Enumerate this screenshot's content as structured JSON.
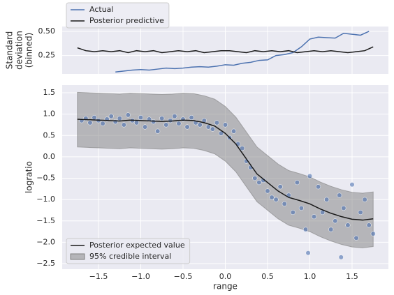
{
  "chart_data": [
    {
      "type": "line",
      "ylabel": [
        "Standard",
        "deviation",
        "(binned)"
      ],
      "xlim": [
        -1.93,
        1.93
      ],
      "xticks": [
        -1.5,
        -1.0,
        -0.5,
        0,
        0.5,
        1.0,
        1.5
      ],
      "xtick_labels": false,
      "ylim": [
        0.06,
        0.55
      ],
      "yticks": [
        {
          "value": 0.5,
          "label": "0.50"
        },
        0.25
      ],
      "grid": true,
      "legend": "upper left outside",
      "series": [
        {
          "name": "Actual",
          "color": "#4c72b0",
          "x": [
            -1.3,
            -1.2,
            -1.1,
            -1.0,
            -0.9,
            -0.8,
            -0.7,
            -0.6,
            -0.5,
            -0.4,
            -0.3,
            -0.2,
            -0.1,
            0,
            0.1,
            0.2,
            0.3,
            0.4,
            0.5,
            0.6,
            0.7,
            0.8,
            0.9,
            1.0,
            1.1,
            1.2,
            1.3,
            1.4,
            1.5,
            1.6,
            1.7
          ],
          "values": [
            0.08,
            0.09,
            0.1,
            0.105,
            0.1,
            0.11,
            0.12,
            0.115,
            0.12,
            0.13,
            0.135,
            0.13,
            0.14,
            0.155,
            0.15,
            0.17,
            0.18,
            0.2,
            0.205,
            0.25,
            0.26,
            0.28,
            0.34,
            0.42,
            0.44,
            0.435,
            0.43,
            0.48,
            0.47,
            0.46,
            0.5
          ]
        },
        {
          "name": "Posterior predictive",
          "color": "#1a1a1a",
          "x": [
            -1.75,
            -1.65,
            -1.55,
            -1.45,
            -1.35,
            -1.25,
            -1.15,
            -1.05,
            -0.95,
            -0.85,
            -0.75,
            -0.65,
            -0.55,
            -0.45,
            -0.35,
            -0.25,
            -0.15,
            -0.05,
            0.05,
            0.15,
            0.25,
            0.35,
            0.45,
            0.55,
            0.65,
            0.75,
            0.85,
            0.95,
            1.05,
            1.15,
            1.25,
            1.35,
            1.45,
            1.55,
            1.65,
            1.75
          ],
          "values": [
            0.33,
            0.3,
            0.29,
            0.3,
            0.29,
            0.3,
            0.28,
            0.3,
            0.29,
            0.3,
            0.28,
            0.29,
            0.3,
            0.29,
            0.3,
            0.28,
            0.29,
            0.3,
            0.3,
            0.29,
            0.28,
            0.3,
            0.29,
            0.3,
            0.29,
            0.3,
            0.28,
            0.29,
            0.3,
            0.29,
            0.3,
            0.29,
            0.28,
            0.29,
            0.3,
            0.34
          ]
        }
      ]
    },
    {
      "type": "line",
      "xlabel": "range",
      "ylabel": "logratio",
      "xlim": [
        -1.93,
        1.93
      ],
      "xticks": [
        {
          "value": -1.5,
          "label": "−1.5"
        },
        {
          "value": -1.0,
          "label": "−1.0"
        },
        {
          "value": -0.5,
          "label": "−0.5"
        },
        {
          "value": 0,
          "label": "0.0"
        },
        0.5,
        {
          "value": 1.0,
          "label": "1.0"
        },
        1.5
      ],
      "ylim": [
        -2.63,
        1.68
      ],
      "yticks": [
        1.5,
        {
          "value": 1.0,
          "label": "1.0"
        },
        0.5,
        {
          "value": 0,
          "label": "0.0"
        },
        {
          "value": -0.5,
          "label": "−0.5"
        },
        {
          "value": -1.0,
          "label": "−1.0"
        },
        {
          "value": -1.5,
          "label": "−1.5"
        },
        {
          "value": -2.0,
          "label": "−2.0"
        },
        {
          "value": -2.5,
          "label": "−2.5"
        }
      ],
      "grid": true,
      "legend": "lower left",
      "scatter": {
        "color": "#4c72b0",
        "x": [
          -1.7,
          -1.65,
          -1.6,
          -1.55,
          -1.5,
          -1.45,
          -1.4,
          -1.35,
          -1.3,
          -1.25,
          -1.2,
          -1.15,
          -1.1,
          -1.05,
          -1.0,
          -0.95,
          -0.9,
          -0.85,
          -0.8,
          -0.75,
          -0.7,
          -0.65,
          -0.6,
          -0.55,
          -0.5,
          -0.45,
          -0.4,
          -0.35,
          -0.3,
          -0.25,
          -0.2,
          -0.15,
          -0.1,
          -0.05,
          0,
          0.05,
          0.1,
          0.15,
          0.2,
          0.25,
          0.3,
          0.35,
          0.4,
          0.45,
          0.5,
          0.55,
          0.6,
          0.65,
          0.7,
          0.75,
          0.8,
          0.85,
          0.9,
          0.95,
          1.0,
          1.05,
          1.1,
          1.15,
          1.2,
          1.25,
          1.3,
          1.35,
          1.4,
          1.45,
          1.5,
          1.55,
          1.6,
          1.65,
          1.7,
          1.75,
          0.98,
          1.37
        ],
        "values": [
          0.85,
          0.9,
          0.8,
          0.92,
          0.85,
          0.78,
          0.88,
          0.95,
          0.82,
          0.9,
          0.75,
          0.98,
          0.85,
          0.8,
          0.92,
          0.7,
          0.88,
          0.82,
          0.6,
          0.9,
          0.75,
          0.85,
          0.95,
          0.78,
          0.88,
          0.7,
          0.92,
          0.8,
          0.75,
          0.85,
          0.7,
          0.65,
          0.8,
          0.55,
          0.75,
          0.45,
          0.6,
          0.3,
          0.2,
          -0.1,
          -0.25,
          -0.5,
          -0.6,
          -0.55,
          -0.8,
          -0.95,
          -1.0,
          -0.7,
          -1.1,
          -0.9,
          -1.3,
          -0.6,
          -1.2,
          -1.7,
          -0.45,
          -1.4,
          -0.7,
          -1.3,
          -1.0,
          -1.7,
          -1.5,
          -0.9,
          -1.2,
          -1.6,
          -0.65,
          -1.9,
          -1.3,
          -1.0,
          -1.6,
          -1.8,
          -2.25,
          -2.35
        ]
      },
      "series": [
        {
          "name": "Posterior expected value",
          "color": "#1a1a1a",
          "x": [
            -1.75,
            -1.625,
            -1.5,
            -1.375,
            -1.25,
            -1.125,
            -1.0,
            -0.875,
            -0.75,
            -0.625,
            -0.5,
            -0.375,
            -0.25,
            -0.125,
            0,
            0.125,
            0.25,
            0.375,
            0.5,
            0.625,
            0.75,
            0.875,
            1.0,
            1.125,
            1.25,
            1.375,
            1.5,
            1.625,
            1.75
          ],
          "values": [
            0.88,
            0.87,
            0.86,
            0.85,
            0.84,
            0.86,
            0.85,
            0.84,
            0.83,
            0.84,
            0.86,
            0.85,
            0.8,
            0.72,
            0.55,
            0.3,
            -0.05,
            -0.4,
            -0.6,
            -0.8,
            -0.95,
            -1.02,
            -1.1,
            -1.22,
            -1.32,
            -1.4,
            -1.46,
            -1.48,
            -1.45
          ]
        }
      ],
      "band": {
        "name": "95% credible interval",
        "color": "#808080",
        "x": [
          -1.75,
          -1.625,
          -1.5,
          -1.375,
          -1.25,
          -1.125,
          -1.0,
          -0.875,
          -0.75,
          -0.625,
          -0.5,
          -0.375,
          -0.25,
          -0.125,
          0,
          0.125,
          0.25,
          0.375,
          0.5,
          0.625,
          0.75,
          0.875,
          1.0,
          1.125,
          1.25,
          1.375,
          1.5,
          1.625,
          1.75
        ],
        "upper": [
          1.51,
          1.5,
          1.49,
          1.48,
          1.47,
          1.49,
          1.48,
          1.47,
          1.46,
          1.47,
          1.49,
          1.48,
          1.43,
          1.35,
          1.18,
          0.93,
          0.58,
          0.23,
          0.03,
          -0.17,
          -0.32,
          -0.39,
          -0.47,
          -0.59,
          -0.69,
          -0.77,
          -0.83,
          -0.85,
          -0.82
        ],
        "lower": [
          0.23,
          0.22,
          0.21,
          0.2,
          0.19,
          0.21,
          0.2,
          0.19,
          0.18,
          0.19,
          0.21,
          0.2,
          0.15,
          0.07,
          -0.1,
          -0.35,
          -0.7,
          -1.05,
          -1.25,
          -1.45,
          -1.6,
          -1.67,
          -1.75,
          -1.87,
          -1.97,
          -2.05,
          -2.11,
          -2.13,
          -2.1
        ]
      }
    }
  ]
}
